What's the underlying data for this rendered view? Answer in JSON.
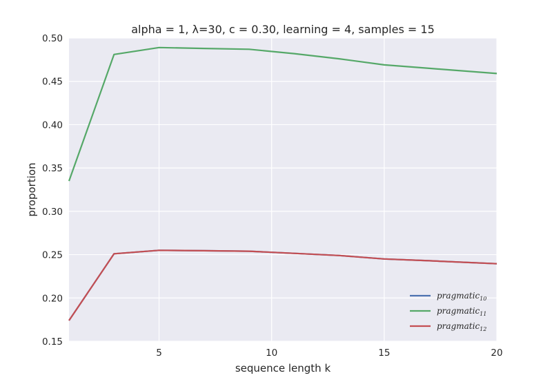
{
  "chart_data": {
    "type": "line",
    "title": "alpha = 1, λ=30, c = 0.30, learning = 4, samples = 15",
    "xlabel": "sequence length k",
    "ylabel": "proportion",
    "xlim": [
      1,
      20
    ],
    "ylim": [
      0.15,
      0.5
    ],
    "xticks": [
      5,
      10,
      15,
      20
    ],
    "yticks": [
      0.15,
      0.2,
      0.25,
      0.3,
      0.35,
      0.4,
      0.45,
      0.5
    ],
    "grid": true,
    "legend_position": "bottom-right",
    "x": [
      1,
      3,
      5,
      7,
      9,
      11,
      13,
      15,
      17,
      20
    ],
    "series": [
      {
        "name": "pragmatic",
        "subscript": "10",
        "color": "#4c72b0",
        "values": [
          0.174,
          0.251,
          0.255,
          0.2545,
          0.254,
          0.2515,
          0.249,
          0.245,
          0.243,
          0.2395
        ]
      },
      {
        "name": "pragmatic",
        "subscript": "11",
        "color": "#55a868",
        "values": [
          0.335,
          0.481,
          0.489,
          0.488,
          0.487,
          0.482,
          0.476,
          0.469,
          0.465,
          0.459
        ]
      },
      {
        "name": "pragmatic",
        "subscript": "12",
        "color": "#c44e52",
        "values": [
          0.174,
          0.251,
          0.255,
          0.2545,
          0.254,
          0.2515,
          0.249,
          0.245,
          0.243,
          0.2395
        ]
      }
    ]
  }
}
